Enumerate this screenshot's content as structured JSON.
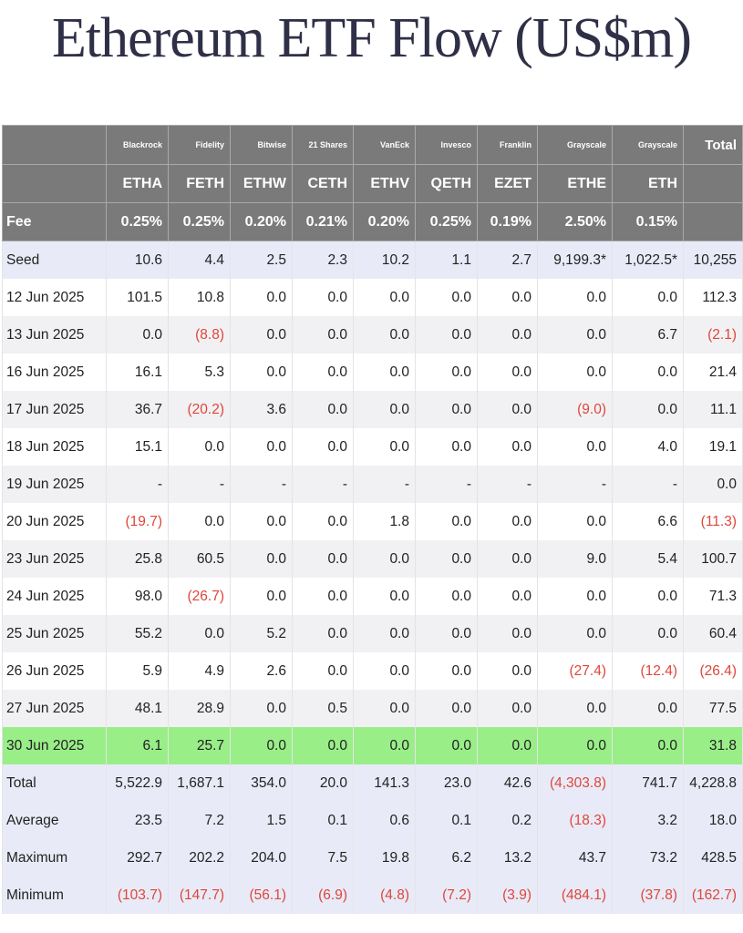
{
  "title": "Ethereum ETF Flow (US$m)",
  "header": {
    "issuers": [
      "Blackrock",
      "Fidelity",
      "Bitwise",
      "21 Shares",
      "VanEck",
      "Invesco",
      "Franklin",
      "Grayscale",
      "Grayscale"
    ],
    "total_label": "Total",
    "tickers": [
      "ETHA",
      "FETH",
      "ETHW",
      "CETH",
      "ETHV",
      "QETH",
      "EZET",
      "ETHE",
      "ETH"
    ],
    "fee_label": "Fee",
    "fees": [
      "0.25%",
      "0.25%",
      "0.20%",
      "0.21%",
      "0.20%",
      "0.25%",
      "0.19%",
      "2.50%",
      "0.15%"
    ]
  },
  "rows": [
    {
      "label": "Seed",
      "values": [
        "10.6",
        "4.4",
        "2.5",
        "2.3",
        "10.2",
        "1.1",
        "2.7",
        "9,199.3*",
        "1,022.5*",
        "10,255"
      ],
      "style": "seed"
    },
    {
      "label": "12 Jun 2025",
      "values": [
        "101.5",
        "10.8",
        "0.0",
        "0.0",
        "0.0",
        "0.0",
        "0.0",
        "0.0",
        "0.0",
        "112.3"
      ],
      "style": "white"
    },
    {
      "label": "13 Jun 2025",
      "values": [
        "0.0",
        "(8.8)",
        "0.0",
        "0.0",
        "0.0",
        "0.0",
        "0.0",
        "0.0",
        "6.7",
        "(2.1)"
      ],
      "style": "grey"
    },
    {
      "label": "16 Jun 2025",
      "values": [
        "16.1",
        "5.3",
        "0.0",
        "0.0",
        "0.0",
        "0.0",
        "0.0",
        "0.0",
        "0.0",
        "21.4"
      ],
      "style": "white"
    },
    {
      "label": "17 Jun 2025",
      "values": [
        "36.7",
        "(20.2)",
        "3.6",
        "0.0",
        "0.0",
        "0.0",
        "0.0",
        "(9.0)",
        "0.0",
        "11.1"
      ],
      "style": "grey"
    },
    {
      "label": "18 Jun 2025",
      "values": [
        "15.1",
        "0.0",
        "0.0",
        "0.0",
        "0.0",
        "0.0",
        "0.0",
        "0.0",
        "4.0",
        "19.1"
      ],
      "style": "white"
    },
    {
      "label": "19 Jun 2025",
      "values": [
        "-",
        "-",
        "-",
        "-",
        "-",
        "-",
        "-",
        "-",
        "-",
        "0.0"
      ],
      "style": "grey"
    },
    {
      "label": "20 Jun 2025",
      "values": [
        "(19.7)",
        "0.0",
        "0.0",
        "0.0",
        "1.8",
        "0.0",
        "0.0",
        "0.0",
        "6.6",
        "(11.3)"
      ],
      "style": "white"
    },
    {
      "label": "23 Jun 2025",
      "values": [
        "25.8",
        "60.5",
        "0.0",
        "0.0",
        "0.0",
        "0.0",
        "0.0",
        "9.0",
        "5.4",
        "100.7"
      ],
      "style": "grey"
    },
    {
      "label": "24 Jun 2025",
      "values": [
        "98.0",
        "(26.7)",
        "0.0",
        "0.0",
        "0.0",
        "0.0",
        "0.0",
        "0.0",
        "0.0",
        "71.3"
      ],
      "style": "white"
    },
    {
      "label": "25 Jun 2025",
      "values": [
        "55.2",
        "0.0",
        "5.2",
        "0.0",
        "0.0",
        "0.0",
        "0.0",
        "0.0",
        "0.0",
        "60.4"
      ],
      "style": "grey"
    },
    {
      "label": "26 Jun 2025",
      "values": [
        "5.9",
        "4.9",
        "2.6",
        "0.0",
        "0.0",
        "0.0",
        "0.0",
        "(27.4)",
        "(12.4)",
        "(26.4)"
      ],
      "style": "white"
    },
    {
      "label": "27 Jun 2025",
      "values": [
        "48.1",
        "28.9",
        "0.0",
        "0.5",
        "0.0",
        "0.0",
        "0.0",
        "0.0",
        "0.0",
        "77.5"
      ],
      "style": "grey"
    },
    {
      "label": "30 Jun 2025",
      "values": [
        "6.1",
        "25.7",
        "0.0",
        "0.0",
        "0.0",
        "0.0",
        "0.0",
        "0.0",
        "0.0",
        "31.8"
      ],
      "style": "highlight"
    },
    {
      "label": "Total",
      "values": [
        "5,522.9",
        "1,687.1",
        "354.0",
        "20.0",
        "141.3",
        "23.0",
        "42.6",
        "(4,303.8)",
        "741.7",
        "4,228.8"
      ],
      "style": "summary"
    },
    {
      "label": "Average",
      "values": [
        "23.5",
        "7.2",
        "1.5",
        "0.1",
        "0.6",
        "0.1",
        "0.2",
        "(18.3)",
        "3.2",
        "18.0"
      ],
      "style": "summary"
    },
    {
      "label": "Maximum",
      "values": [
        "292.7",
        "202.2",
        "204.0",
        "7.5",
        "19.8",
        "6.2",
        "13.2",
        "43.7",
        "73.2",
        "428.5"
      ],
      "style": "summary"
    },
    {
      "label": "Minimum",
      "values": [
        "(103.7)",
        "(147.7)",
        "(56.1)",
        "(6.9)",
        "(4.8)",
        "(7.2)",
        "(3.9)",
        "(484.1)",
        "(37.8)",
        "(162.7)"
      ],
      "style": "summary"
    }
  ],
  "colors": {
    "header_bg": "#7a7a7a",
    "negative": "#e0453a",
    "highlight_row": "#99ee88",
    "seed_and_summary_bg": "#e8ebf7",
    "title": "#2f3047"
  }
}
